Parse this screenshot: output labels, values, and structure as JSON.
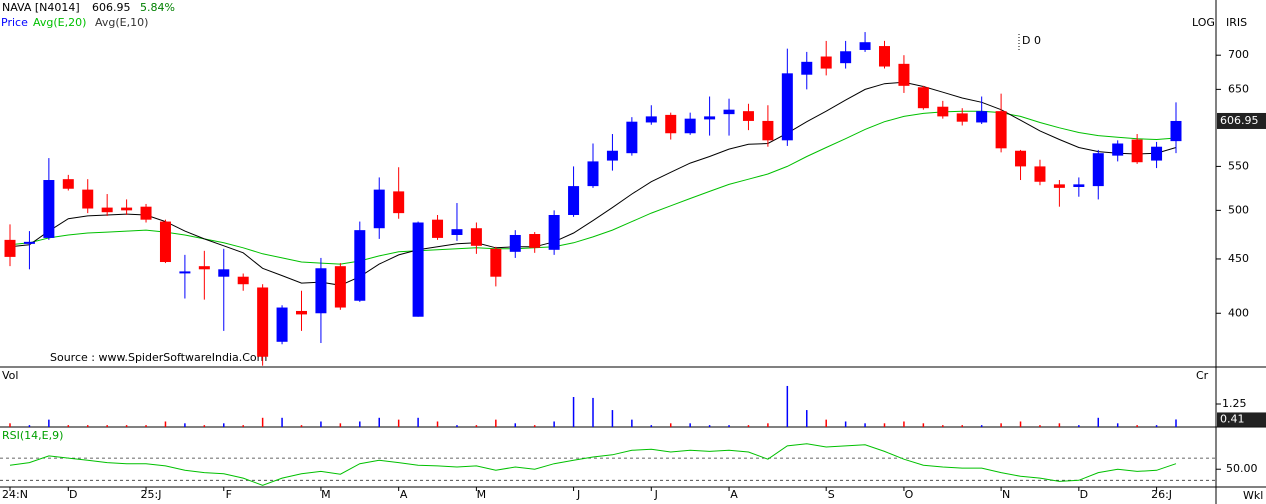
{
  "chart_data": {
    "type": "candlestick",
    "title": "NAVA [N4014]",
    "change_label": "5.84%",
    "price_name": "Price",
    "up_color": "#0000ff",
    "down_color": "#ff0000",
    "categories": [
      "24:N",
      null,
      null,
      "D",
      null,
      null,
      null,
      "25:J",
      null,
      null,
      null,
      "F",
      null,
      null,
      null,
      null,
      "M",
      null,
      null,
      null,
      "A",
      null,
      null,
      null,
      "M",
      null,
      null,
      null,
      null,
      "J",
      null,
      null,
      null,
      "J",
      null,
      null,
      null,
      "A",
      null,
      null,
      null,
      null,
      "S",
      null,
      null,
      null,
      "O",
      null,
      null,
      null,
      null,
      "N",
      null,
      null,
      null,
      "D",
      null,
      null,
      null,
      "26:J",
      null
    ],
    "open": [
      469,
      465,
      471,
      535,
      523,
      503,
      503,
      504,
      488,
      437,
      443,
      433,
      433,
      423,
      376,
      402,
      400,
      443,
      411,
      481,
      521,
      397,
      490,
      474,
      481,
      460,
      457,
      475,
      459,
      495,
      527,
      557,
      566,
      605,
      615,
      591,
      609,
      616,
      620,
      607,
      582,
      671,
      698,
      688,
      708,
      714,
      687,
      653,
      626,
      617,
      605,
      620,
      569,
      550,
      529,
      526,
      527,
      563,
      583,
      557,
      581
    ],
    "high": [
      485,
      478,
      560,
      540,
      535,
      518,
      512,
      507,
      490,
      454,
      458,
      460,
      436,
      426,
      407,
      420,
      451,
      446,
      488,
      537,
      549,
      488,
      495,
      508,
      487,
      462,
      479,
      477,
      500,
      550,
      578,
      590,
      612,
      628,
      618,
      618,
      640,
      637,
      630,
      628,
      710,
      705,
      722,
      722,
      736,
      722,
      700,
      655,
      634,
      624,
      640,
      644,
      570,
      558,
      534,
      537,
      570,
      582,
      590,
      580,
      632
    ],
    "low": [
      443,
      440,
      469,
      522,
      497,
      494,
      495,
      487,
      446,
      413,
      412,
      385,
      420,
      357,
      374,
      385,
      375,
      403,
      410,
      470,
      491,
      397,
      469,
      468,
      455,
      424,
      451,
      456,
      454,
      493,
      525,
      545,
      563,
      602,
      583,
      589,
      588,
      588,
      595,
      574,
      575,
      650,
      670,
      680,
      705,
      680,
      645,
      622,
      610,
      601,
      603,
      567,
      534,
      528,
      504,
      515,
      512,
      556,
      553,
      548,
      566
    ],
    "close": [
      452,
      467,
      534,
      524,
      502,
      498,
      500,
      490,
      447,
      438,
      440,
      440,
      426,
      364,
      405,
      399,
      441,
      405,
      479,
      523,
      497,
      487,
      471,
      480,
      463,
      433,
      474,
      461,
      495,
      527,
      556,
      569,
      606,
      613,
      591,
      610,
      613,
      622,
      607,
      582,
      673,
      690,
      680,
      706,
      720,
      683,
      655,
      624,
      613,
      606,
      620,
      572,
      550,
      532,
      525,
      529,
      566,
      578,
      555,
      574,
      606.95
    ],
    "lines": [
      {
        "name": "Avg(E,20)",
        "color": "#00c000",
        "values": [
          464,
          466,
          471,
          474,
          476,
          477,
          478,
          479,
          477,
          474,
          470,
          466,
          461,
          455,
          451,
          447,
          446,
          445,
          448,
          453,
          457,
          458,
          459,
          460,
          461,
          460,
          460,
          461,
          462,
          466,
          472,
          479,
          488,
          497,
          505,
          513,
          521,
          529,
          535,
          541,
          550,
          562,
          573,
          584,
          596,
          606,
          613,
          617,
          619,
          620,
          620,
          618,
          613,
          605,
          598,
          592,
          588,
          586,
          584,
          583,
          585
        ]
      },
      {
        "name": "Avg(E,10)",
        "color": "#000000",
        "values": [
          462,
          464,
          478,
          491,
          494,
          495,
          496,
          495,
          488,
          478,
          470,
          463,
          456,
          441,
          434,
          427,
          428,
          425,
          433,
          445,
          454,
          459,
          462,
          465,
          466,
          461,
          462,
          462,
          467,
          476,
          489,
          503,
          518,
          532,
          543,
          554,
          562,
          571,
          577,
          578,
          591,
          606,
          620,
          635,
          650,
          658,
          660,
          654,
          646,
          638,
          632,
          622,
          608,
          594,
          583,
          573,
          568,
          566,
          565,
          566,
          573
        ]
      }
    ],
    "ylim": [
      356,
      789
    ],
    "log": true,
    "yticks": [
      400,
      450,
      500,
      550,
      650,
      700
    ],
    "scale_label": "LOG",
    "corner_label": "IRIS",
    "annotation": "D 0",
    "source": "Source : www.SpiderSoftwareIndia.Com",
    "periodicity": "Wkl",
    "volume": {
      "title": "Vol",
      "unit": "Cr",
      "ylim": [
        0,
        3.26
      ],
      "yticks": [
        1.25
      ],
      "values": [
        0.2,
        0.1,
        0.4,
        0.1,
        0.1,
        0.1,
        0.1,
        0.1,
        0.3,
        0.2,
        0.1,
        0.2,
        0.1,
        0.5,
        0.5,
        0.1,
        0.3,
        0.2,
        0.3,
        0.5,
        0.4,
        0.5,
        0.3,
        0.1,
        0.1,
        0.4,
        0.2,
        0.1,
        0.3,
        1.63,
        1.58,
        0.92,
        0.4,
        0.1,
        0.2,
        0.2,
        0.1,
        0.1,
        0.1,
        0.2,
        2.23,
        0.92,
        0.4,
        0.3,
        0.2,
        0.2,
        0.3,
        0.2,
        0.1,
        0.1,
        0.1,
        0.2,
        0.3,
        0.1,
        0.2,
        0.1,
        0.5,
        0.2,
        0.1,
        0.1,
        0.41
      ]
    },
    "rsi": {
      "title": "RSI(14,E,9)",
      "color": "#00c000",
      "ylim": [
        34,
        88
      ],
      "yticks": [
        {
          "value": 50,
          "label": "50.00"
        }
      ],
      "levels": [
        40,
        60
      ],
      "values": [
        53.6,
        56,
        62,
        60,
        58,
        56,
        55,
        55,
        53,
        49,
        47,
        46,
        42,
        35.5,
        42,
        46,
        48,
        45.5,
        55,
        58,
        56,
        53.6,
        53,
        52,
        53,
        49,
        52,
        50,
        55,
        58,
        61,
        63,
        67,
        68,
        65.5,
        67,
        66,
        67,
        65.5,
        59,
        71,
        73,
        70,
        71,
        72,
        66,
        59,
        53.6,
        52,
        51,
        51,
        47,
        43.6,
        42,
        39,
        40,
        47,
        50,
        48,
        49,
        55
      ]
    }
  }
}
